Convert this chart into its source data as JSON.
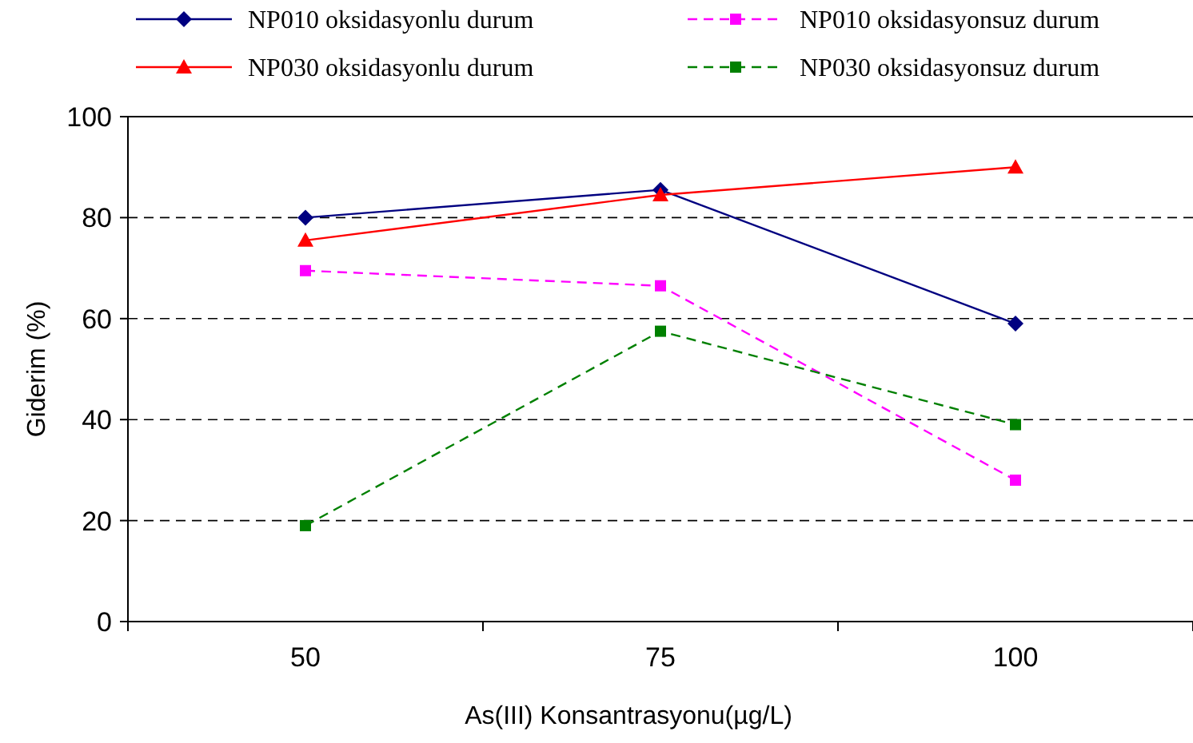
{
  "chart_data": {
    "type": "line",
    "xlabel": "As(III) Konsantrasyonu(µg/L)",
    "ylabel": "Giderim (%)",
    "categories": [
      "50",
      "75",
      "100"
    ],
    "series": [
      {
        "name": "NP010 oksidasyonlu durum",
        "color": "#000080",
        "values": [
          80,
          85.5,
          59
        ],
        "marker": "diamond",
        "line_style": "solid"
      },
      {
        "name": "NP030 oksidasyonlu durum",
        "color": "#ff0000",
        "values": [
          75.5,
          84.5,
          90
        ],
        "marker": "triangle",
        "line_style": "solid"
      },
      {
        "name": "NP010 oksidasyonsuz durum",
        "color": "#ff00ff",
        "values": [
          69.5,
          66.5,
          28
        ],
        "marker": "square",
        "line_style": "dashed"
      },
      {
        "name": "NP030 oksidasyonsuz durum",
        "color": "#008000",
        "values": [
          19,
          57.5,
          39
        ],
        "marker": "square",
        "line_style": "dashed"
      }
    ],
    "ylim": [
      0,
      100
    ],
    "yticks": [
      0,
      20,
      40,
      60,
      80,
      100
    ],
    "grid": "y",
    "legend": "top"
  }
}
